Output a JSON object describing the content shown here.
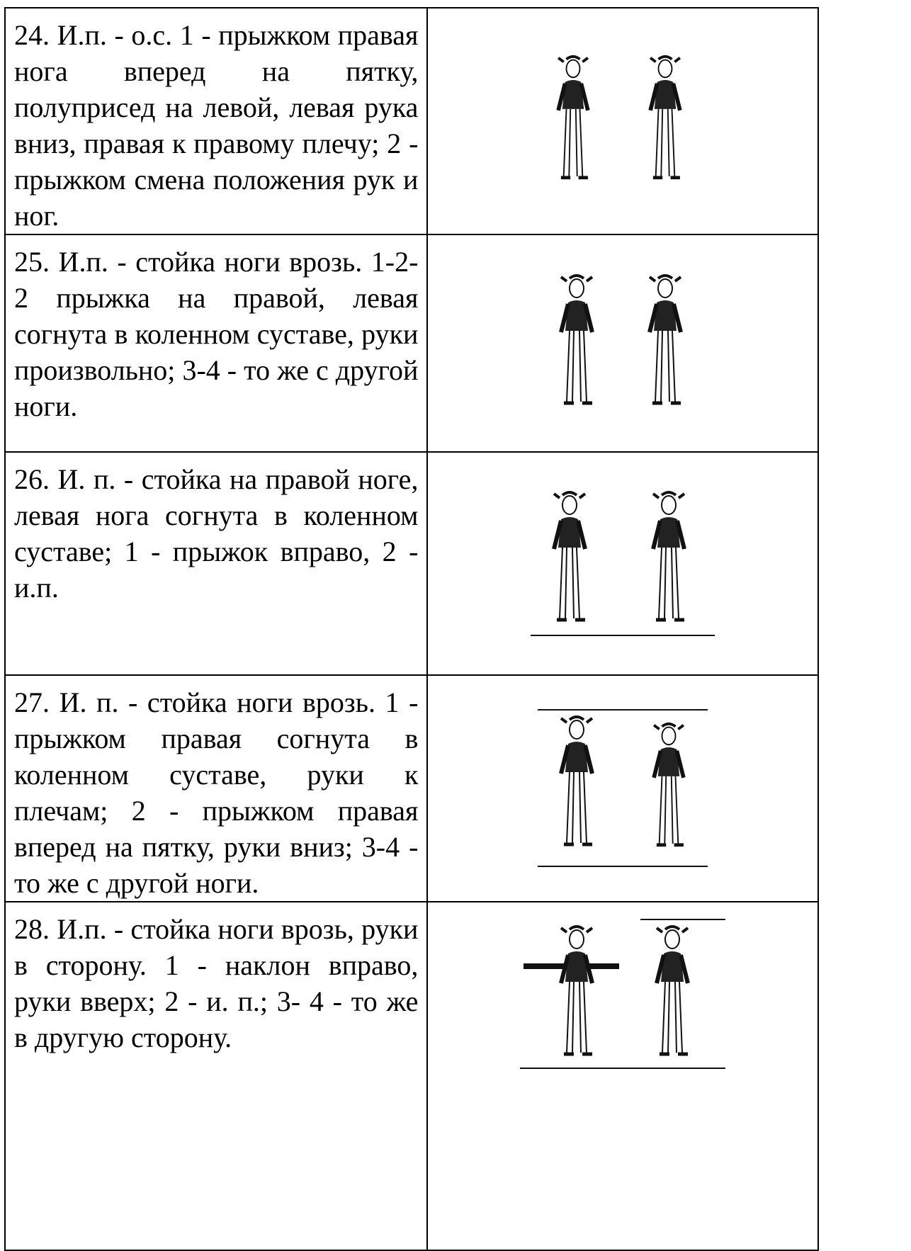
{
  "table": {
    "rows": [
      {
        "text": "24. И.п. - о.с. 1 - прыжком правая нога вперед на пятку, полуприсед на левой, левая рука вниз, правая к правому плечу; 2 - прыжком смена положения рук и ног."
      },
      {
        "text": "25. И.п. - стойка ноги врозь. 1-2-2 прыжка на правой, левая согнута в коленном суставе, руки произвольно; 3-4 - то же с другой ноги."
      },
      {
        "text": "26. И. п. - стойка на правой ноге, левая нога согнута в коленном суставе; 1 - прыжок вправо, 2 - и.п."
      },
      {
        "text": "27. И. п. - стойка ноги врозь. 1 - прыжком правая согнута в коленном суставе, руки к плечам; 2 - прыжком правая вперед на пятку, руки вниз; 3-4 - то же с другой ноги."
      },
      {
        "text": "28. И.п. - стойка ноги врозь, руки в сторону. 1 - наклон вправо, руки вверх; 2 - и. п.; 3- 4 - то же в другую сторону."
      }
    ]
  }
}
